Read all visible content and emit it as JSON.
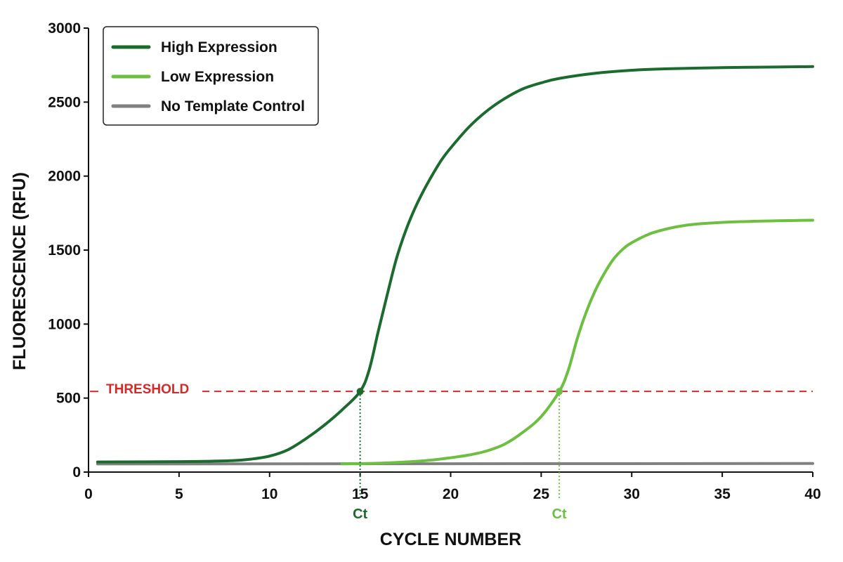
{
  "chart_data": {
    "type": "line",
    "xlabel": "CYCLE NUMBER",
    "ylabel": "FLUORESCENCE (RFU)",
    "xlim": [
      0,
      40
    ],
    "ylim": [
      0,
      3000
    ],
    "xticks": [
      0,
      5,
      10,
      15,
      20,
      25,
      30,
      35,
      40
    ],
    "yticks": [
      0,
      500,
      1000,
      1500,
      2000,
      2500,
      3000
    ],
    "grid": false,
    "legend_position": "top-left",
    "series": [
      {
        "name": "High Expression",
        "color": "#1b6b2e",
        "x": [
          0.5,
          2,
          4,
          6,
          8,
          9,
          10,
          11,
          12,
          13,
          14,
          15,
          15.5,
          16,
          16.5,
          17,
          17.5,
          18,
          18.5,
          19,
          19.5,
          20,
          21,
          22,
          23,
          24,
          25,
          26,
          28,
          30,
          32,
          35,
          38,
          40
        ],
        "y": [
          68,
          69,
          70,
          72,
          78,
          88,
          108,
          150,
          225,
          315,
          420,
          545,
          690,
          950,
          1200,
          1440,
          1625,
          1775,
          1900,
          2010,
          2110,
          2190,
          2330,
          2440,
          2525,
          2590,
          2630,
          2660,
          2695,
          2715,
          2725,
          2733,
          2737,
          2740
        ]
      },
      {
        "name": "Low Expression",
        "color": "#6cbf3f",
        "x": [
          14,
          16,
          18,
          19,
          20,
          21,
          22,
          23,
          24,
          25,
          26,
          26.5,
          27,
          27.5,
          28,
          28.5,
          29,
          29.5,
          30,
          31,
          32,
          33,
          34,
          36,
          38,
          40
        ],
        "y": [
          56,
          60,
          72,
          82,
          97,
          115,
          143,
          190,
          270,
          375,
          545,
          690,
          905,
          1085,
          1230,
          1345,
          1440,
          1505,
          1550,
          1610,
          1645,
          1668,
          1680,
          1692,
          1698,
          1702
        ]
      },
      {
        "name": "No Template Control",
        "color": "#808080",
        "x": [
          0.5,
          40
        ],
        "y": [
          55,
          58
        ]
      }
    ],
    "threshold": {
      "label": "THRESHOLD",
      "value": 545,
      "color": "#d42a2a"
    },
    "ct_markers": [
      {
        "label": "Ct",
        "x": 15,
        "y": 545,
        "color": "#1b6b2e"
      },
      {
        "label": "Ct",
        "x": 26,
        "y": 545,
        "color": "#6cbf3f"
      }
    ]
  }
}
